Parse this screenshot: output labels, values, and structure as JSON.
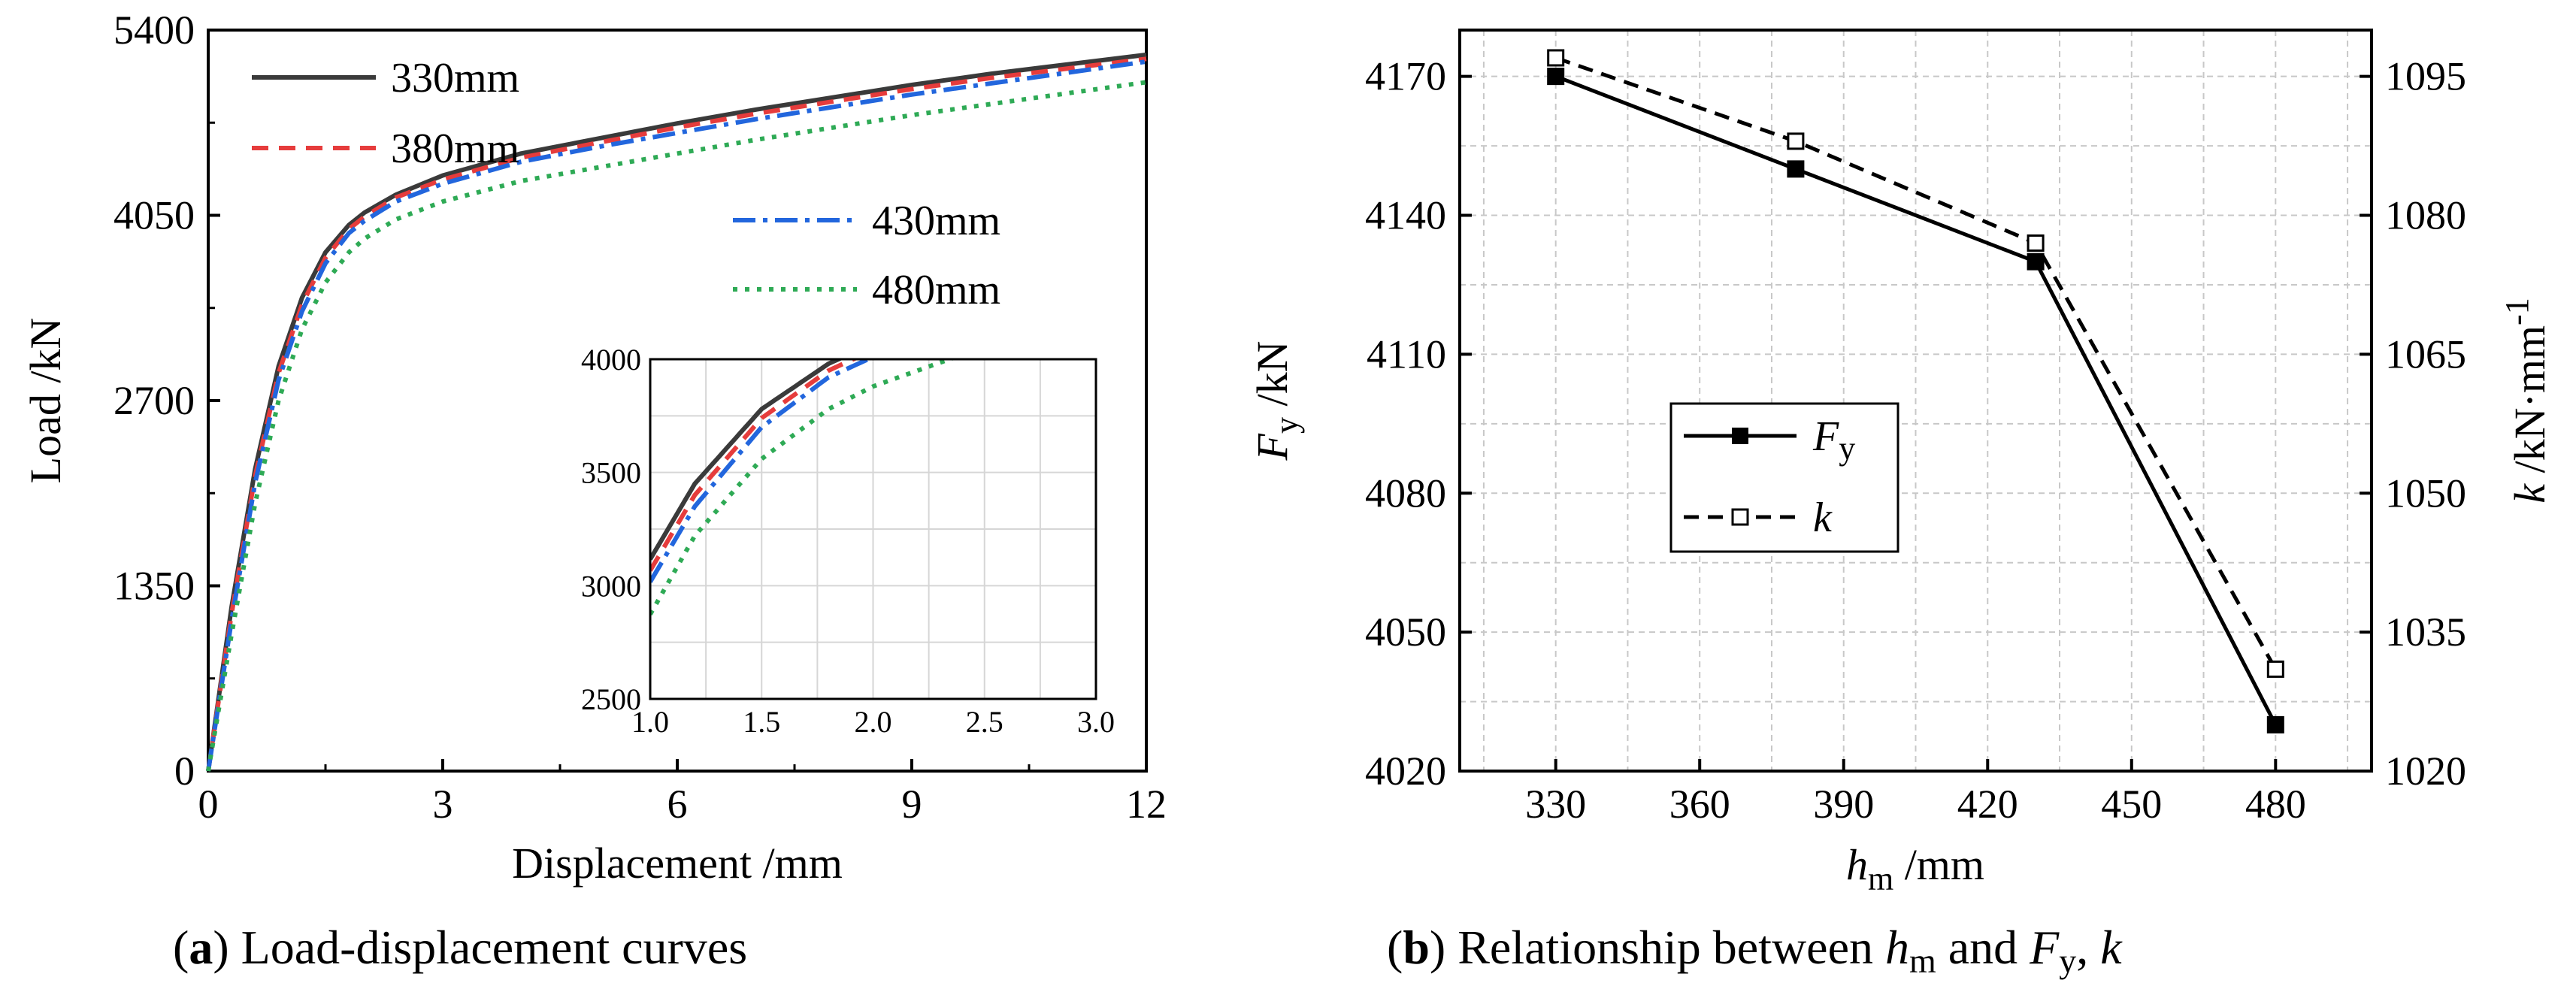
{
  "chart_data": [
    {
      "id": "a",
      "type": "line",
      "title": "",
      "caption": {
        "label": "a",
        "text": "Load-displacement curves"
      },
      "xlabel": "Displacement  /mm",
      "ylabel": "Load  /kN",
      "xlim": [
        0,
        12
      ],
      "ylim": [
        0,
        5400
      ],
      "xticks": [
        0,
        3,
        6,
        9,
        12
      ],
      "yticks": [
        0,
        1350,
        2700,
        4050,
        5400
      ],
      "grid": false,
      "legend": "top-left",
      "series": [
        {
          "name": "330mm",
          "color": "#3a3a3a",
          "style": "solid",
          "x": [
            0,
            0.3,
            0.6,
            0.9,
            1.2,
            1.5,
            1.8,
            2.0,
            2.4,
            3.0,
            4.0,
            5.0,
            6.0,
            7.0,
            8.0,
            9.0,
            10.0,
            11.0,
            12.0
          ],
          "y": [
            0,
            1200,
            2200,
            2950,
            3450,
            3780,
            3980,
            4070,
            4200,
            4340,
            4500,
            4610,
            4720,
            4820,
            4910,
            5000,
            5080,
            5150,
            5220
          ]
        },
        {
          "name": "380mm",
          "color": "#e63c3c",
          "style": "dashed",
          "x": [
            0,
            0.3,
            0.6,
            0.9,
            1.2,
            1.5,
            1.8,
            2.0,
            2.4,
            3.0,
            4.0,
            5.0,
            6.0,
            7.0,
            8.0,
            9.0,
            10.0,
            11.0,
            12.0
          ],
          "y": [
            0,
            1150,
            2150,
            2900,
            3400,
            3740,
            3950,
            4040,
            4180,
            4310,
            4470,
            4580,
            4690,
            4790,
            4880,
            4970,
            5050,
            5120,
            5190
          ]
        },
        {
          "name": "430mm",
          "color": "#2266dd",
          "style": "dashdot",
          "x": [
            0,
            0.3,
            0.6,
            0.9,
            1.2,
            1.5,
            1.8,
            2.0,
            2.4,
            3.0,
            4.0,
            5.0,
            6.0,
            7.0,
            8.0,
            9.0,
            10.0,
            11.0,
            12.0
          ],
          "y": [
            0,
            1100,
            2100,
            2850,
            3350,
            3700,
            3920,
            4010,
            4150,
            4280,
            4440,
            4550,
            4650,
            4750,
            4840,
            4930,
            5010,
            5090,
            5170
          ]
        },
        {
          "name": "480mm",
          "color": "#2eaa55",
          "style": "dotted",
          "x": [
            0,
            0.3,
            0.6,
            0.9,
            1.2,
            1.5,
            1.8,
            2.0,
            2.4,
            3.0,
            4.0,
            5.0,
            6.0,
            7.0,
            8.0,
            9.0,
            10.0,
            11.0,
            12.0
          ],
          "y": [
            0,
            1000,
            1950,
            2700,
            3220,
            3560,
            3780,
            3880,
            4020,
            4150,
            4300,
            4400,
            4500,
            4600,
            4690,
            4780,
            4860,
            4940,
            5020
          ]
        }
      ],
      "inset": {
        "xlim": [
          1.0,
          3.0
        ],
        "ylim": [
          2500,
          4000
        ],
        "xticks": [
          1.0,
          1.5,
          2.0,
          2.5,
          3.0
        ],
        "xtick_labels": [
          "1.0",
          "1.5",
          "2.0",
          "2.5",
          "3.0"
        ],
        "yticks": [
          2500,
          3000,
          3500,
          4000
        ],
        "ytick_labels": [
          "2500",
          "3000",
          "3500",
          "4000"
        ],
        "grid": true
      }
    },
    {
      "id": "b",
      "type": "line",
      "title": "",
      "caption": {
        "label": "b",
        "pre": "Relationship between ",
        "h": "h",
        "hsub": "m",
        "mid": " and ",
        "F": "F",
        "Fsub": "y",
        "post": ", ",
        "k": "k"
      },
      "xlabel": {
        "var": "h",
        "sub": "m",
        "unit": "  /mm"
      },
      "ylabel_left": {
        "var": "F",
        "sub": "y",
        "unit": "  /kN"
      },
      "ylabel_right": {
        "var": "k",
        "unit": "  /kN·mm",
        "sup": "-1"
      },
      "x": [
        330,
        380,
        430,
        480
      ],
      "xlim": [
        310,
        500
      ],
      "xticks": [
        330,
        360,
        390,
        420,
        450,
        480
      ],
      "ylim_left": [
        4020,
        4180
      ],
      "yticks_left": [
        4020,
        4050,
        4080,
        4110,
        4140,
        4170
      ],
      "ylim_right": [
        1020,
        1100
      ],
      "yticks_right": [
        1020,
        1035,
        1050,
        1065,
        1080,
        1095
      ],
      "grid": true,
      "legend": "center-left",
      "series": [
        {
          "name": "Fy",
          "label_var": "F",
          "label_sub": "y",
          "axis": "left",
          "style": "solid",
          "marker": "filled-square",
          "color": "#000000",
          "values": [
            4170,
            4150,
            4130,
            4030
          ]
        },
        {
          "name": "k",
          "label_var": "k",
          "axis": "right",
          "style": "dashed",
          "marker": "open-square",
          "color": "#000000",
          "values": [
            1097,
            1088,
            1077,
            1031
          ]
        }
      ]
    }
  ]
}
